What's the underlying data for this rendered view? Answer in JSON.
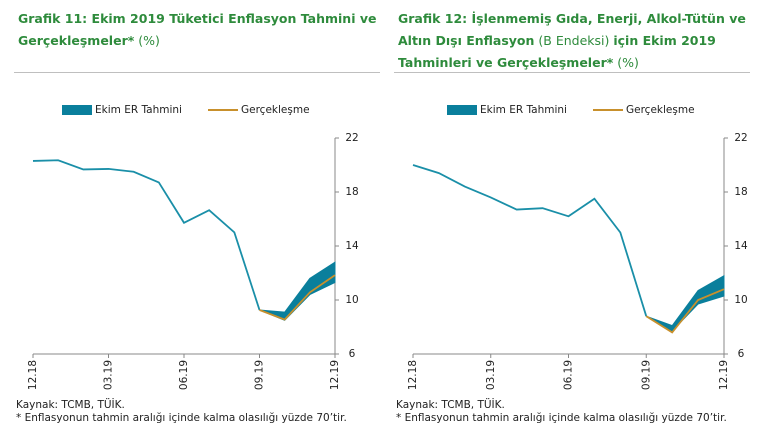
{
  "chart_data": [
    {
      "type": "line",
      "title": [
        "Grafik 11: Ekim 2019 Tüketici Enflasyon Tahmini ve Gerçekleşmeler*",
        " (%)"
      ],
      "categories": [
        "12.18",
        null,
        null,
        "03.19",
        null,
        null,
        "06.19",
        null,
        null,
        "09.19",
        null,
        null,
        "12.19"
      ],
      "series": [
        {
          "color": "#1a8fa8",
          "values": [
            20.3,
            20.35,
            19.67,
            19.71,
            19.5,
            18.71,
            15.72,
            16.65,
            15.01,
            9.26,
            null,
            null,
            null
          ]
        },
        {
          "name": "Ekim ER Tahmini",
          "color": "#0a7f9c",
          "lower": [
            null,
            null,
            null,
            null,
            null,
            null,
            null,
            null,
            null,
            9.26,
            8.5,
            10.4,
            11.3
          ],
          "upper": [
            null,
            null,
            null,
            null,
            null,
            null,
            null,
            null,
            null,
            9.26,
            9.1,
            11.6,
            12.8
          ]
        },
        {
          "name": "Gerçekleşme",
          "color": "#c8902c",
          "values": [
            null,
            null,
            null,
            null,
            null,
            null,
            null,
            null,
            null,
            9.26,
            8.55,
            10.56,
            11.84
          ]
        }
      ],
      "ylim": [
        6,
        22
      ],
      "yticks": [
        6,
        10,
        14,
        18,
        22
      ],
      "source": "Kaynak: TCMB, TÜİK.",
      "note": "* Enflasyonun tahmin aralığı içinde kalma olasılığı yüzde 70’tir."
    },
    {
      "type": "line",
      "title": [
        "Grafik 12: İşlenmemiş Gıda, Enerji, Alkol-Tütün ve Altın Dışı Enflasyon",
        " (B Endeksi) ",
        "için Ekim 2019 Tahminleri ve Gerçekleşmeler*",
        " (%)"
      ],
      "categories": [
        "12.18",
        null,
        null,
        "03.19",
        null,
        null,
        "06.19",
        null,
        null,
        "09.19",
        null,
        null,
        "12.19"
      ],
      "series": [
        {
          "color": "#1a8fa8",
          "values": [
            20.0,
            19.4,
            18.4,
            17.6,
            16.7,
            16.8,
            16.2,
            17.5,
            15.0,
            8.8,
            null,
            null,
            null
          ]
        },
        {
          "name": "Ekim ER Tahmini",
          "color": "#0a7f9c",
          "lower": [
            null,
            null,
            null,
            null,
            null,
            null,
            null,
            null,
            null,
            8.8,
            7.7,
            9.7,
            10.3
          ],
          "upper": [
            null,
            null,
            null,
            null,
            null,
            null,
            null,
            null,
            null,
            8.8,
            8.1,
            10.7,
            11.8
          ]
        },
        {
          "name": "Gerçekleşme",
          "color": "#c8902c",
          "values": [
            null,
            null,
            null,
            null,
            null,
            null,
            null,
            null,
            null,
            8.8,
            7.6,
            10.0,
            10.8
          ]
        }
      ],
      "ylim": [
        6,
        22
      ],
      "yticks": [
        6,
        10,
        14,
        18,
        22
      ],
      "source": "Kaynak: TCMB, TÜİK.",
      "note": "* Enflasyonun tahmin aralığı içinde kalma olasılığı yüzde 70’tir."
    }
  ]
}
